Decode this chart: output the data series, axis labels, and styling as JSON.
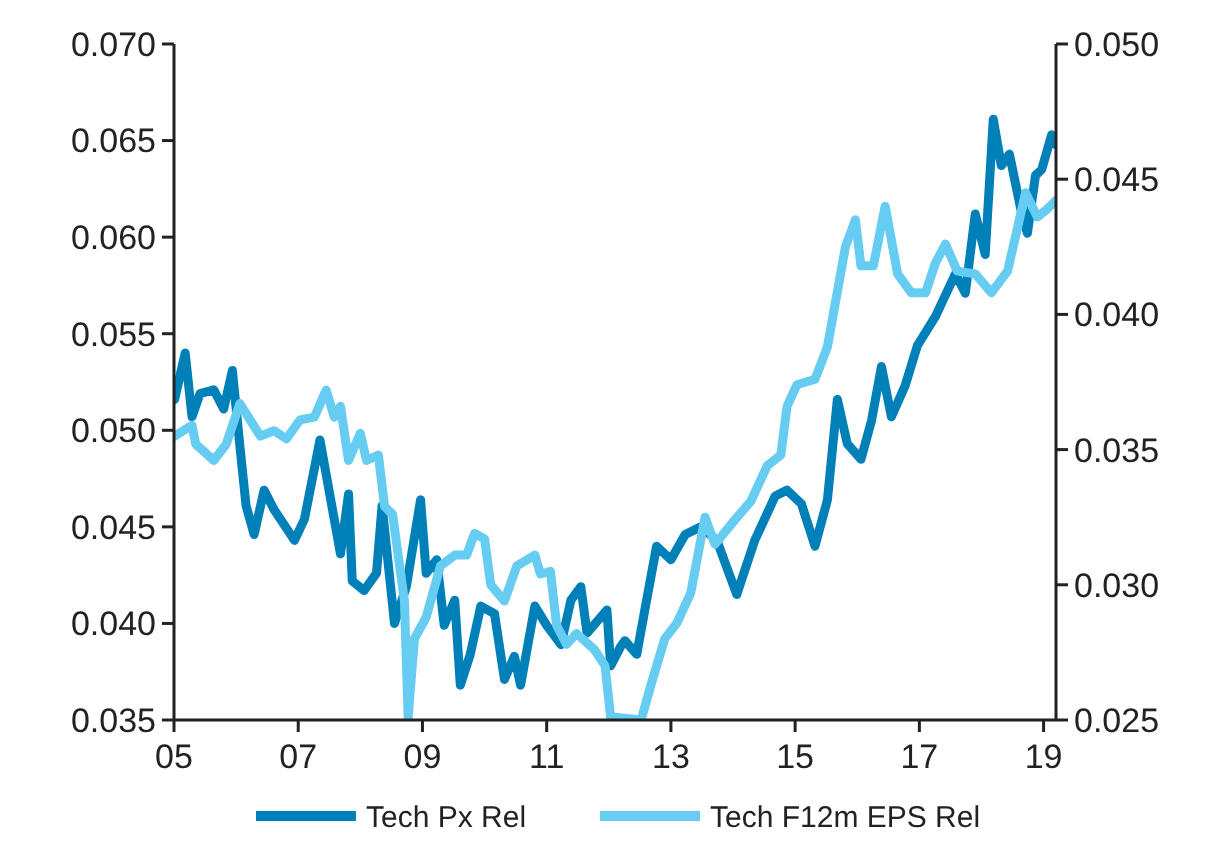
{
  "chart_data": {
    "type": "line",
    "xlim": [
      2005,
      2019.2
    ],
    "xticks": [
      {
        "value": 2005,
        "label": "05"
      },
      {
        "value": 2007,
        "label": "07"
      },
      {
        "value": 2009,
        "label": "09"
      },
      {
        "value": 2011,
        "label": "11"
      },
      {
        "value": 2013,
        "label": "13"
      },
      {
        "value": 2015,
        "label": "15"
      },
      {
        "value": 2017,
        "label": "17"
      },
      {
        "value": 2019,
        "label": "19"
      }
    ],
    "ylim": [
      0.035,
      0.07
    ],
    "yticks": [
      0.035,
      {
        "value": 0.04,
        "label": "0.040"
      },
      0.045,
      {
        "value": 0.05,
        "label": "0.050"
      },
      0.055,
      {
        "value": 0.06,
        "label": "0.060"
      },
      0.065,
      {
        "value": 0.07,
        "label": "0.070"
      }
    ],
    "y2lim": [
      0.025,
      0.05
    ],
    "y2ticks": [
      0.025,
      {
        "value": 0.03,
        "label": "0.030"
      },
      0.035,
      {
        "value": 0.04,
        "label": "0.040"
      },
      0.045,
      {
        "value": 0.05,
        "label": "0.050"
      }
    ],
    "grid": false,
    "legend": "bottom",
    "line_style": "solid",
    "marker": "none",
    "series": [
      {
        "name": "Tech Px Rel",
        "color": "#0080b8",
        "x": [
          2005.01,
          2005.18,
          2005.29,
          2005.42,
          2005.64,
          2005.8,
          2005.94,
          2006.06,
          2006.16,
          2006.29,
          2006.45,
          2006.61,
          2006.94,
          2007.1,
          2007.35,
          2007.68,
          2007.81,
          2007.87,
          2008.06,
          2008.26,
          2008.35,
          2008.55,
          2008.74,
          2008.97,
          2009.06,
          2009.23,
          2009.35,
          2009.52,
          2009.61,
          2009.77,
          2009.94,
          2010.16,
          2010.32,
          2010.48,
          2010.58,
          2010.81,
          2011.0,
          2011.23,
          2011.39,
          2011.55,
          2011.65,
          2011.97,
          2012.03,
          2012.19,
          2012.26,
          2012.45,
          2012.58,
          2012.77,
          2013.0,
          2013.23,
          2013.48,
          2013.74,
          2014.06,
          2014.35,
          2014.68,
          2014.87,
          2015.1,
          2015.32,
          2015.52,
          2015.68,
          2015.84,
          2016.06,
          2016.23,
          2016.39,
          2016.55,
          2016.77,
          2016.97,
          2017.26,
          2017.58,
          2017.74,
          2017.9,
          2018.06,
          2018.19,
          2018.32,
          2018.45,
          2018.65,
          2018.74,
          2018.87,
          2018.97,
          2019.13,
          2019.19
        ],
        "values": [
          0.0516,
          0.054,
          0.0507,
          0.0519,
          0.0521,
          0.0511,
          0.0531,
          0.0492,
          0.0461,
          0.0446,
          0.0469,
          0.0459,
          0.0443,
          0.0454,
          0.0495,
          0.0436,
          0.0467,
          0.0422,
          0.0417,
          0.0426,
          0.0461,
          0.04,
          0.0419,
          0.0464,
          0.0426,
          0.0433,
          0.0399,
          0.0412,
          0.0368,
          0.0384,
          0.0409,
          0.0405,
          0.0371,
          0.0383,
          0.0368,
          0.0409,
          0.0399,
          0.0389,
          0.0412,
          0.0419,
          0.0395,
          0.0407,
          0.0378,
          0.0388,
          0.0391,
          0.0384,
          0.0407,
          0.044,
          0.0433,
          0.0446,
          0.045,
          0.0443,
          0.0415,
          0.0443,
          0.0466,
          0.0469,
          0.0462,
          0.044,
          0.0464,
          0.0516,
          0.0493,
          0.0485,
          0.0505,
          0.0533,
          0.0507,
          0.0523,
          0.0544,
          0.0559,
          0.0581,
          0.0571,
          0.0612,
          0.0591,
          0.0661,
          0.0637,
          0.0643,
          0.0612,
          0.0602,
          0.0632,
          0.0635,
          0.0653,
          0.0648
        ]
      },
      {
        "name": "Tech F12m EPS Rel",
        "color": "#66ccf2",
        "axis": "y2",
        "x": [
          2005.01,
          2005.29,
          2005.35,
          2005.64,
          2005.84,
          2006.06,
          2006.39,
          2006.61,
          2006.81,
          2007.03,
          2007.26,
          2007.45,
          2007.58,
          2007.68,
          2007.81,
          2008.0,
          2008.1,
          2008.29,
          2008.39,
          2008.52,
          2008.71,
          2008.77,
          2008.87,
          2009.06,
          2009.29,
          2009.52,
          2009.71,
          2009.84,
          2010.0,
          2010.1,
          2010.32,
          2010.52,
          2010.81,
          2010.9,
          2011.06,
          2011.16,
          2011.32,
          2011.48,
          2011.77,
          2011.94,
          2012.03,
          2012.1,
          2012.52,
          2012.68,
          2012.9,
          2013.1,
          2013.32,
          2013.55,
          2013.71,
          2014.03,
          2014.29,
          2014.55,
          2014.77,
          2014.87,
          2015.03,
          2015.32,
          2015.52,
          2015.81,
          2015.97,
          2016.06,
          2016.26,
          2016.45,
          2016.65,
          2016.87,
          2017.1,
          2017.26,
          2017.42,
          2017.61,
          2017.9,
          2018.16,
          2018.42,
          2018.71,
          2018.9,
          2019.06,
          2019.19
        ],
        "values": [
          0.0355,
          0.0359,
          0.0352,
          0.0346,
          0.0352,
          0.0367,
          0.0355,
          0.0357,
          0.0354,
          0.0361,
          0.0362,
          0.0372,
          0.0362,
          0.0366,
          0.0346,
          0.0356,
          0.0346,
          0.0348,
          0.0329,
          0.0326,
          0.0294,
          0.0251,
          0.028,
          0.0288,
          0.0307,
          0.0311,
          0.0311,
          0.0319,
          0.0317,
          0.03,
          0.0294,
          0.0307,
          0.0311,
          0.0304,
          0.0305,
          0.0285,
          0.0278,
          0.0282,
          0.0276,
          0.027,
          0.0251,
          0.0251,
          0.025,
          0.0263,
          0.028,
          0.0286,
          0.0297,
          0.0325,
          0.0315,
          0.0324,
          0.0331,
          0.0344,
          0.0348,
          0.0366,
          0.0374,
          0.0376,
          0.0388,
          0.0425,
          0.0435,
          0.0418,
          0.0418,
          0.044,
          0.0415,
          0.0408,
          0.0408,
          0.0419,
          0.0426,
          0.0416,
          0.0415,
          0.0408,
          0.0416,
          0.0445,
          0.0436,
          0.0439,
          0.0442
        ]
      }
    ]
  }
}
